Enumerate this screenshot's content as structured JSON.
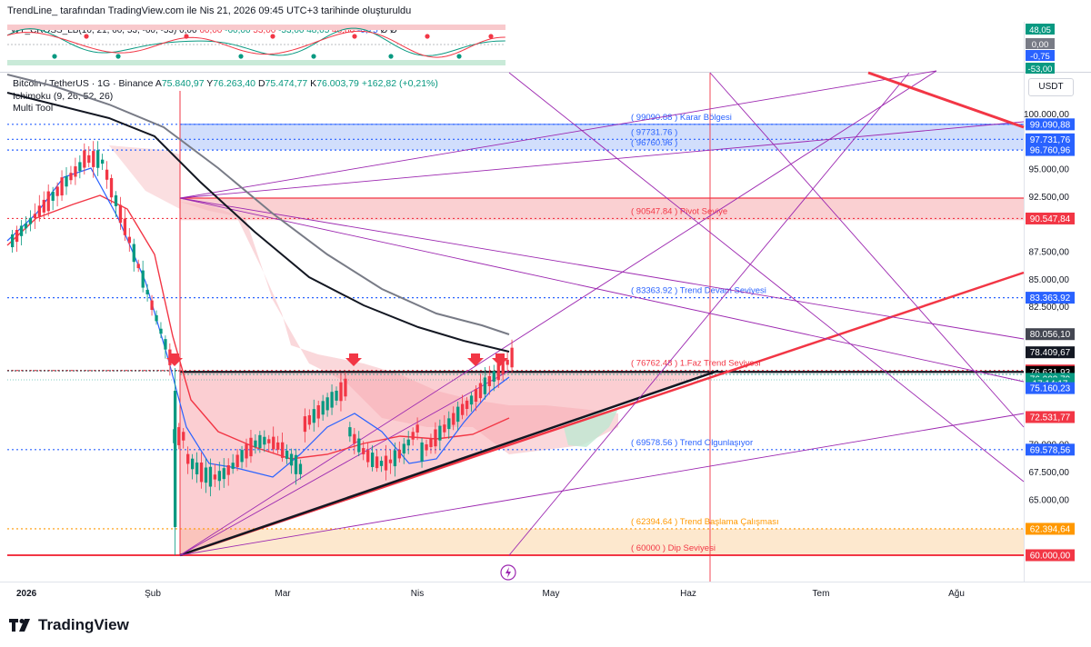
{
  "header": {
    "credit": "TrendLine_ tarafından TradingView.com ile Nis 21, 2026 09:45 UTC+3 tarihinde oluşturuldu"
  },
  "oscillator": {
    "name": "WT_CROSS_LB",
    "params": "(10, 21, 60, 53, -60, -53)",
    "values": [
      {
        "text": "0,00",
        "color": "#131722"
      },
      {
        "text": "60,00",
        "color": "#f23645"
      },
      {
        "text": "-60,00",
        "color": "#089981"
      },
      {
        "text": "53,00",
        "color": "#f23645"
      },
      {
        "text": "-53,00",
        "color": "#089981"
      },
      {
        "text": "48,05",
        "color": "#089981"
      },
      {
        "text": "48,80",
        "color": "#f23645"
      },
      {
        "text": "-0,75",
        "color": "#2962ff"
      },
      {
        "text": "Ø",
        "color": "#131722"
      },
      {
        "text": "Ø",
        "color": "#131722"
      }
    ],
    "axis_labels": [
      {
        "text": "48,05",
        "bg": "#089981"
      },
      {
        "text": "0,00",
        "bg": "#787b86"
      },
      {
        "text": "-0,75",
        "bg": "#2962ff"
      },
      {
        "text": "-53,00",
        "bg": "#089981"
      }
    ]
  },
  "legend": {
    "symbol": "Bitcoin / TetherUS · 1G · Binance",
    "ohlc": [
      {
        "label": "A",
        "value": "75.840,97"
      },
      {
        "label": "Y",
        "value": "76.263,40"
      },
      {
        "label": "D",
        "value": "75.474,77"
      },
      {
        "label": "K",
        "value": "76.003,79"
      }
    ],
    "change": "+162,82 (+0,21%)",
    "ichimoku": "Ichimoku (9, 26, 52, 26)",
    "multitool": "Multi Tool"
  },
  "currency_button": "USDT",
  "chart_data": {
    "type": "candlestick",
    "symbol": "BTCUSDT",
    "timeframe": "1D",
    "ylim": [
      58000,
      103000
    ],
    "price_ticks": [
      {
        "text": "100.000,00",
        "value": 100000
      },
      {
        "text": "95.000,00",
        "value": 95000
      },
      {
        "text": "92.500,00",
        "value": 92500
      },
      {
        "text": "87.500,00",
        "value": 87500
      },
      {
        "text": "85.000,00",
        "value": 85000
      },
      {
        "text": "82.500,00",
        "value": 82500
      },
      {
        "text": "70.000,00",
        "value": 70000
      },
      {
        "text": "67.500,00",
        "value": 67500
      },
      {
        "text": "65.000,00",
        "value": 65000
      }
    ],
    "time_ticks": [
      "2026",
      "Şub",
      "Mar",
      "Nis",
      "May",
      "Haz",
      "Tem",
      "Ağu"
    ],
    "axis_price_labels": [
      {
        "text": "99.090,88",
        "value": 99090.88,
        "bg": "#2962ff"
      },
      {
        "text": "97.731,76",
        "value": 97731.76,
        "bg": "#2962ff"
      },
      {
        "text": "96.760,96",
        "value": 96760.96,
        "bg": "#2962ff"
      },
      {
        "text": "90.547,84",
        "value": 90547.84,
        "bg": "#f23645"
      },
      {
        "text": "83.363,92",
        "value": 83363.92,
        "bg": "#2962ff"
      },
      {
        "text": "80.056,10",
        "value": 80056.1,
        "bg": "#434651"
      },
      {
        "text": "78.409,67",
        "value": 78409.67,
        "bg": "#131722"
      },
      {
        "text": "76.762,48",
        "value": 76762.48,
        "bg": "#f23645"
      },
      {
        "text": "76.631,93",
        "value": 76631.93,
        "bg": "#000000"
      },
      {
        "text": "76.003,79",
        "value": 76003.79,
        "bg": "#089981"
      },
      {
        "text": "17:14:17",
        "value": 75580,
        "bg": "#089981"
      },
      {
        "text": "75.160,23",
        "value": 75160.23,
        "bg": "#2962ff"
      },
      {
        "text": "72.531,77",
        "value": 72531.77,
        "bg": "#f23645"
      },
      {
        "text": "69.578,56",
        "value": 69578.56,
        "bg": "#2962ff"
      },
      {
        "text": "62.394,64",
        "value": 62394.64,
        "bg": "#ff9800"
      },
      {
        "text": "60.000,00",
        "value": 60000,
        "bg": "#f23645"
      }
    ],
    "levels": [
      {
        "text": "( 99090.88  ) Karar Bölgesi",
        "value": 99090.88,
        "color": "#2962ff",
        "style": "dotted"
      },
      {
        "text": "( 97731.76  )",
        "value": 97731.76,
        "color": "#2962ff",
        "style": "dotted"
      },
      {
        "text": "( 96760.96  )",
        "value": 96760.96,
        "color": "#2962ff",
        "style": "dotted"
      },
      {
        "text": "( 90547.84  ) Pivot Seviye",
        "value": 90547.84,
        "color": "#f23645",
        "style": "dotted"
      },
      {
        "text": "( 83363.92  ) Trend Devam Seviyesi",
        "value": 83363.92,
        "color": "#2962ff",
        "style": "dotted"
      },
      {
        "text": "( 76762.48  ) 1.Faz Trend Seviyesi",
        "value": 76762.48,
        "color": "#f23645",
        "style": "dotted"
      },
      {
        "text": "( 69578.56  ) Trend Olgunlaşıyor",
        "value": 69578.56,
        "color": "#2962ff",
        "style": "dotted"
      },
      {
        "text": "( 62394.64  ) Trend Başlama Çalışması",
        "value": 62394.64,
        "color": "#ff9800",
        "style": "dotted"
      },
      {
        "text": "( 60000  ) Dip Seviyesi",
        "value": 60000,
        "color": "#f23645",
        "style": "solid"
      }
    ]
  }
}
